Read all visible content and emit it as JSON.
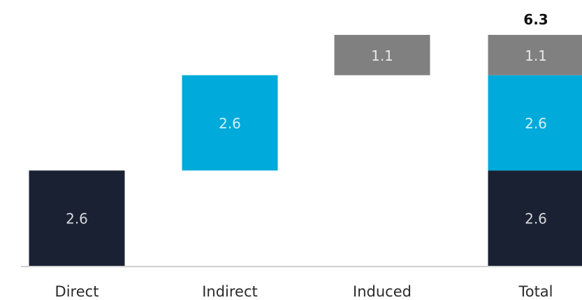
{
  "chart_data": {
    "type": "bar",
    "subtype": "waterfall",
    "categories": [
      "Direct",
      "Indirect",
      "Induced",
      "Total"
    ],
    "series": [
      {
        "key": "direct",
        "color": "#1a2133",
        "values": [
          2.6,
          0,
          0,
          2.6
        ]
      },
      {
        "key": "indirect",
        "color": "#00aadb",
        "values": [
          0,
          2.6,
          0,
          2.6
        ]
      },
      {
        "key": "induced",
        "color": "#808080",
        "values": [
          0,
          0,
          1.1,
          1.1
        ]
      }
    ],
    "segment_labels": {
      "direct": "2.6",
      "indirect": "2.6",
      "induced": "1.1"
    },
    "total_label": "6.3",
    "title": "",
    "xlabel": "",
    "ylabel": "",
    "ylim": [
      0,
      6.3
    ],
    "grid": false,
    "legend": "none",
    "baseline_color": "#d0d0d0"
  }
}
